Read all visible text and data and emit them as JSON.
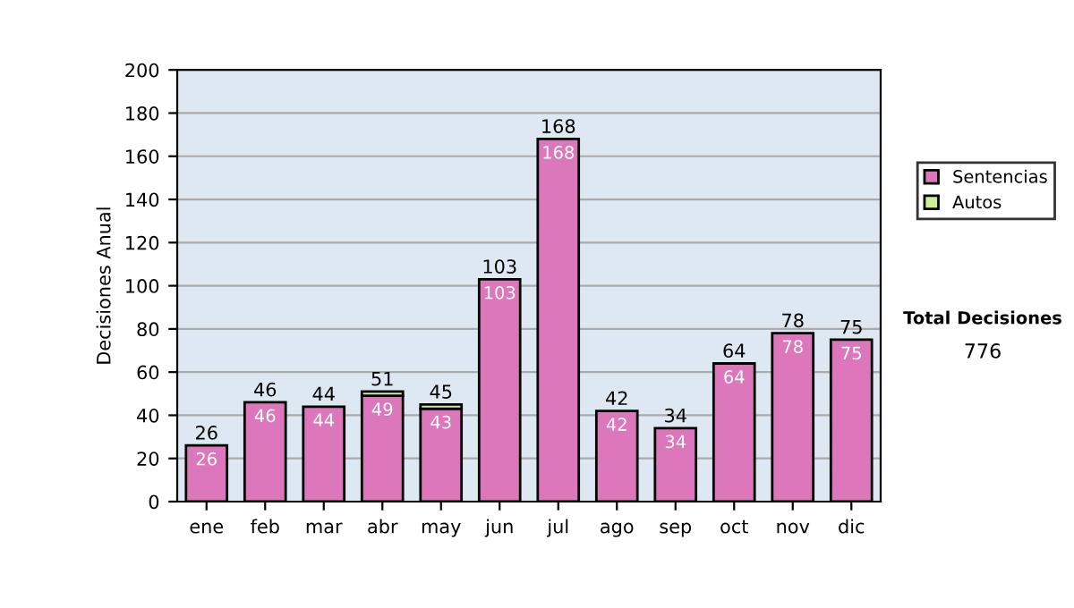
{
  "chart_data": {
    "type": "bar",
    "ylabel": "Decisiones Anual",
    "categories": [
      "ene",
      "feb",
      "mar",
      "abr",
      "may",
      "jun",
      "jul",
      "ago",
      "sep",
      "oct",
      "nov",
      "dic"
    ],
    "series": [
      {
        "name": "Sentencias",
        "color": "#dd77bb",
        "values": [
          26,
          46,
          44,
          49,
          43,
          103,
          168,
          42,
          34,
          64,
          78,
          75
        ],
        "value_labels": [
          "26",
          "46",
          "44",
          "49",
          "43",
          "103",
          "168",
          "42",
          "34",
          "64",
          "78",
          "75"
        ]
      },
      {
        "name": "Autos",
        "color": "#ccee99",
        "values": [
          0,
          0,
          0,
          2,
          2,
          0,
          0,
          0,
          0,
          0,
          0,
          0
        ]
      }
    ],
    "stacked": true,
    "totals": [
      "26",
      "46",
      "44",
      "51",
      "45",
      "103",
      "168",
      "42",
      "34",
      "64",
      "78",
      "75"
    ],
    "ylim": [
      0,
      200
    ],
    "yticks": [
      0,
      20,
      40,
      60,
      80,
      100,
      120,
      140,
      160,
      180,
      200
    ],
    "grid": "y",
    "legend": "right",
    "annotations": [
      "Total Decisiones",
      "776"
    ]
  }
}
